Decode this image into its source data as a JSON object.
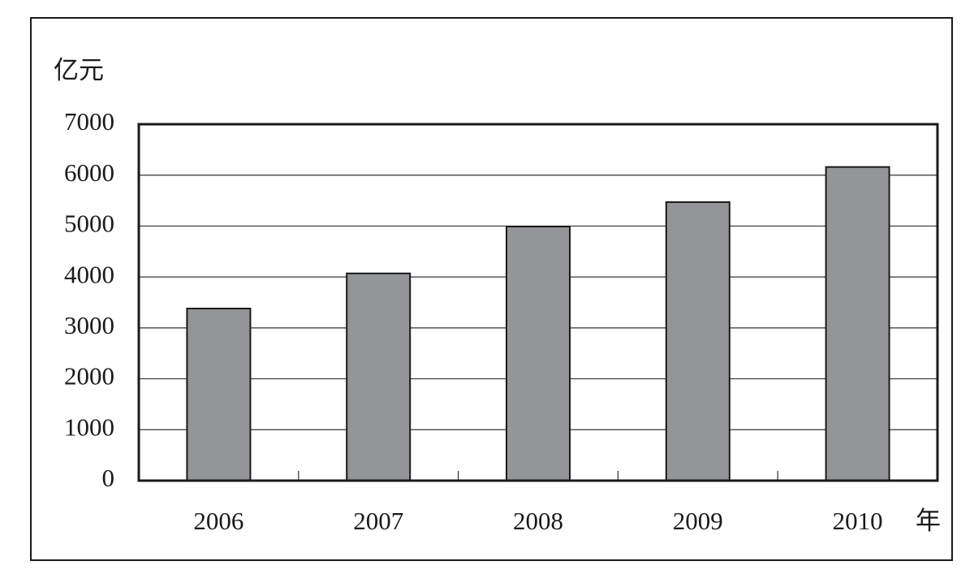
{
  "chart_data": {
    "type": "bar",
    "y_label": "亿元",
    "x_label": "年",
    "categories": [
      "2006",
      "2007",
      "2008",
      "2009",
      "2010"
    ],
    "values": [
      3380,
      4070,
      4990,
      5470,
      6160
    ],
    "color": "#939598",
    "ylim": [
      0,
      7000
    ],
    "yticks": [
      0,
      1000,
      2000,
      3000,
      4000,
      5000,
      6000,
      7000
    ],
    "grid": true
  }
}
